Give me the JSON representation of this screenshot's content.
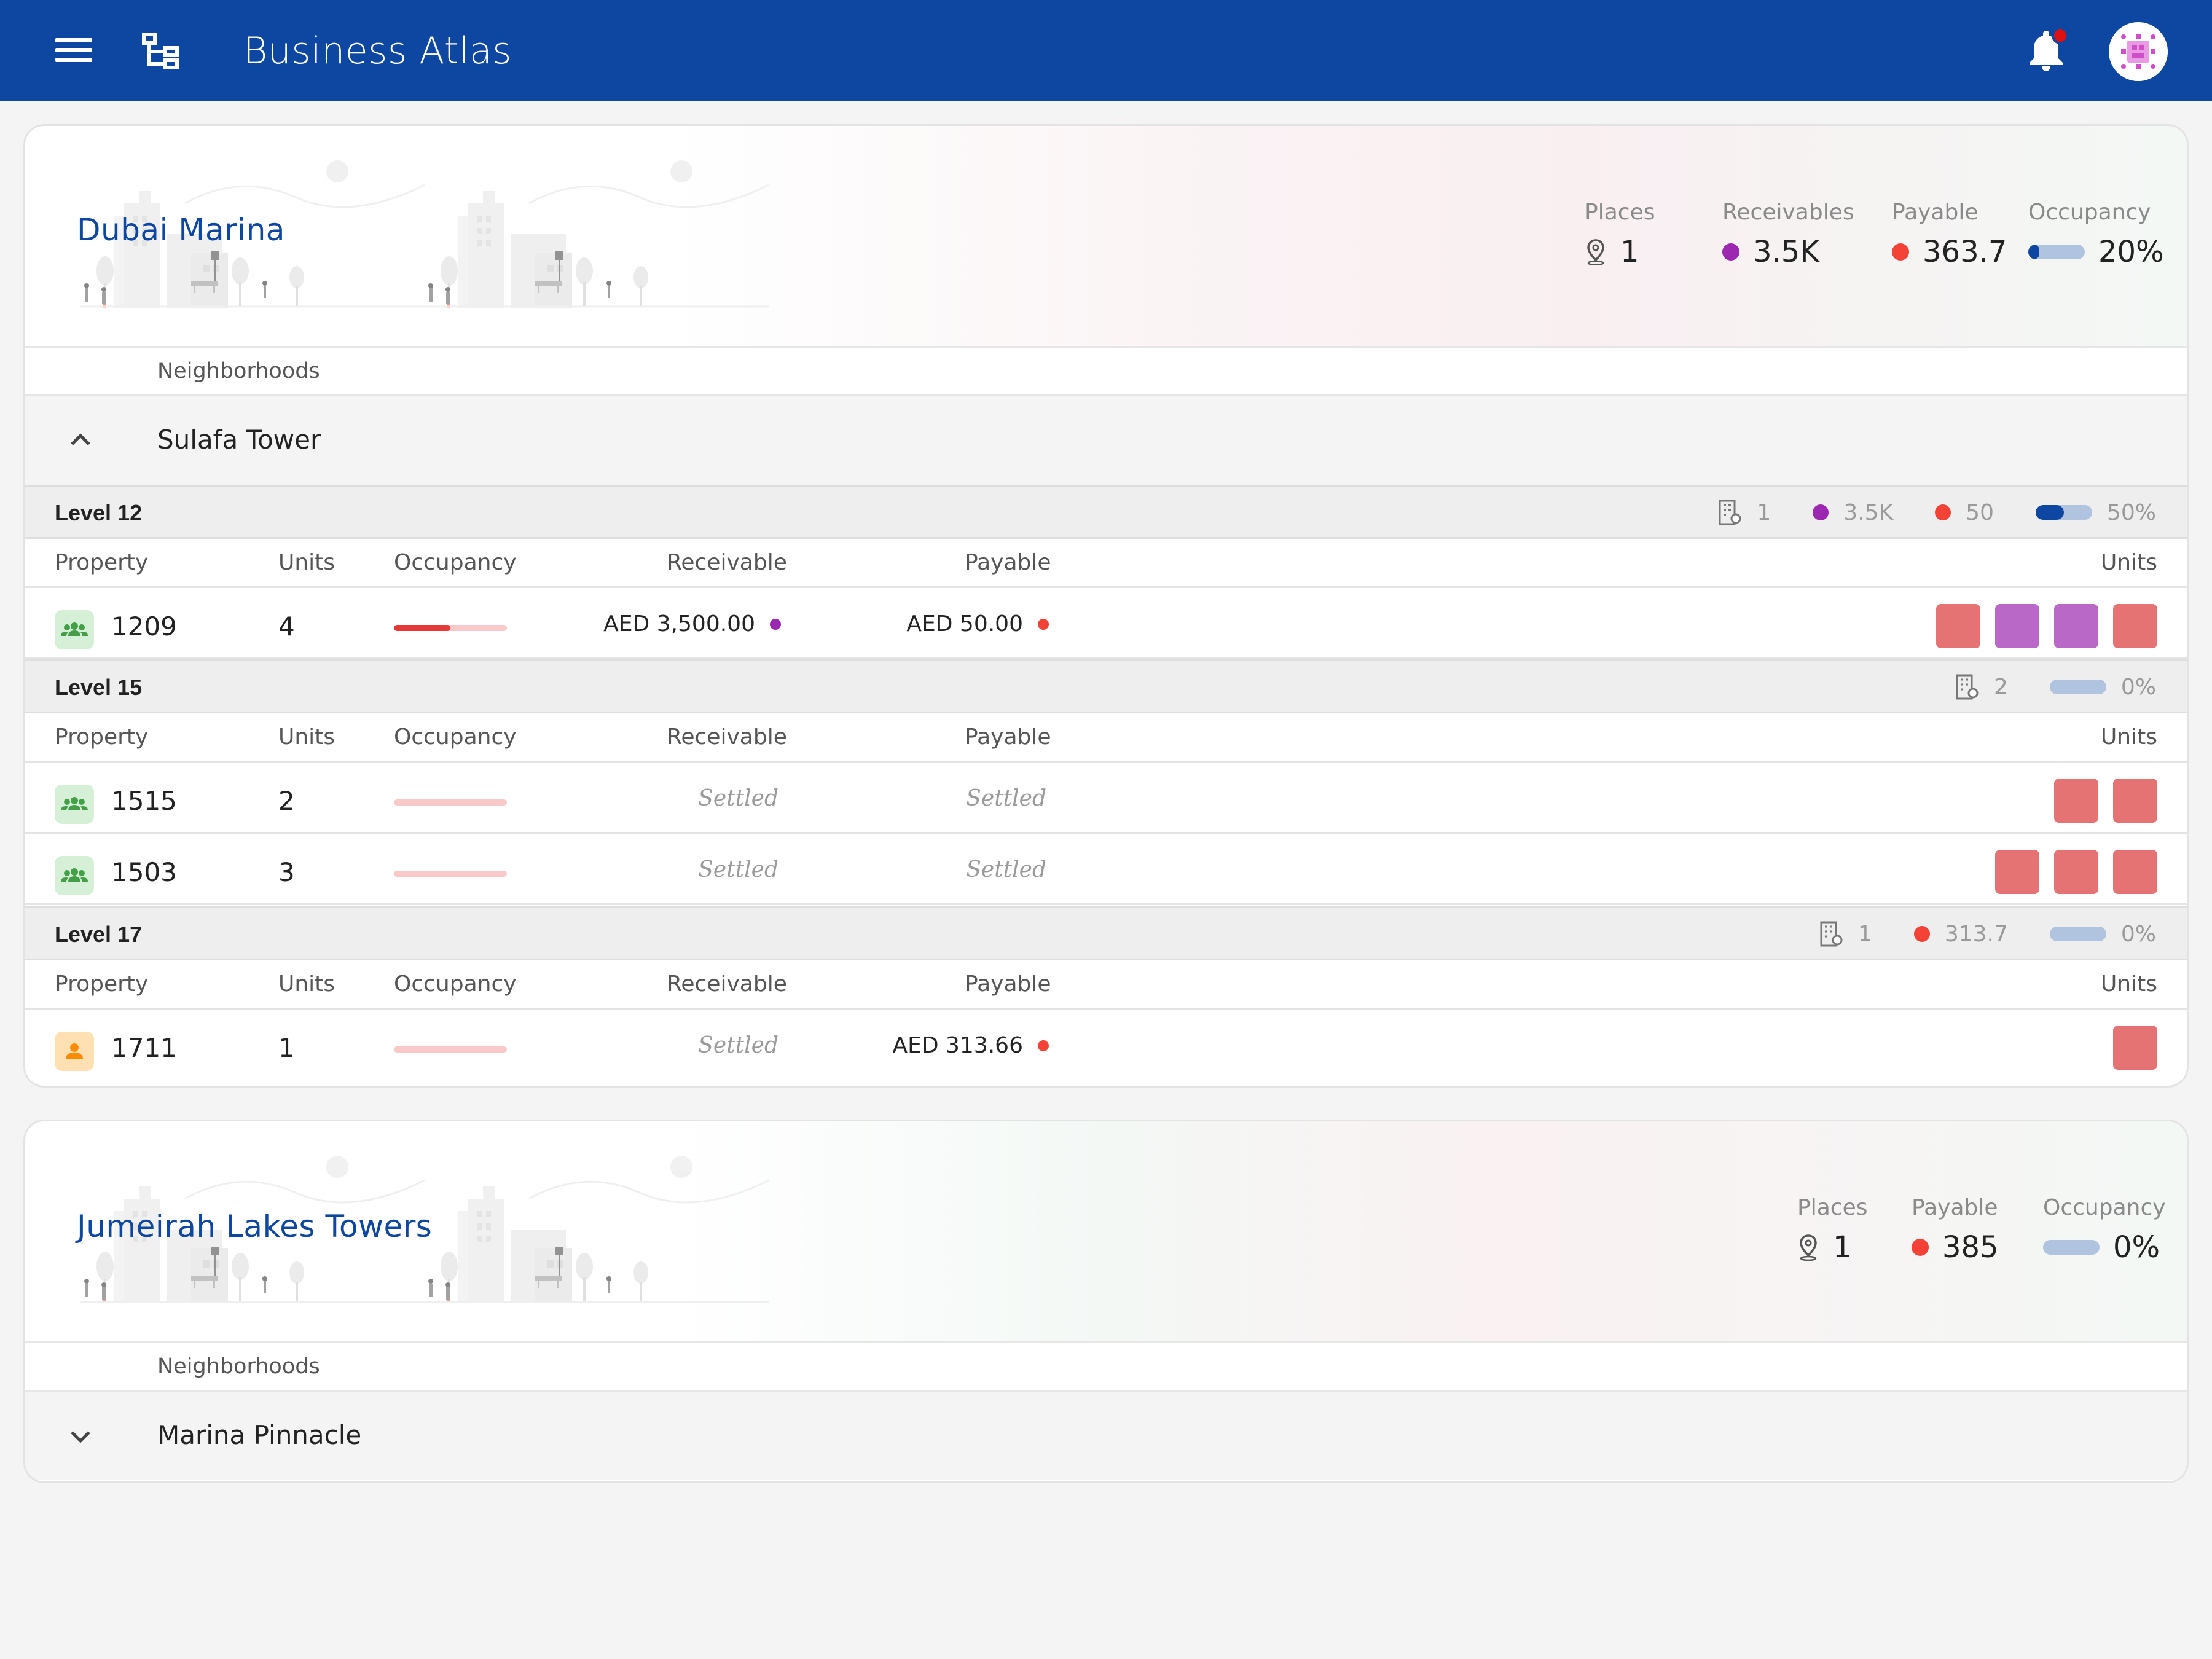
{
  "app": {
    "title": "Business Atlas"
  },
  "colors": {
    "primary": "#0e47a1",
    "receivable": "#9c27b0",
    "payable": "#f44336",
    "unit_vacant": "#e57373",
    "unit_occupied": "#ba68c8"
  },
  "icons": {
    "menu": "menu-icon",
    "tree": "tree-structure-icon",
    "bell": "bell-icon",
    "avatar": "avatar",
    "place": "location-pin-icon",
    "building": "building-icon",
    "chevron_up": "chevron-up-icon",
    "chevron_down": "chevron-down-icon",
    "group": "group-icon",
    "person": "person-icon"
  },
  "cards": [
    {
      "name": "Dubai Marina",
      "stats": {
        "places_label": "Places",
        "places": "1",
        "receivables_label": "Receivables",
        "receivables": "3.5K",
        "payable_label": "Payable",
        "payable": "363.7",
        "occupancy_label": "Occupancy",
        "occupancy": "20%",
        "occupancy_fraction": 0.2
      },
      "neighborhoods_label": "Neighborhoods",
      "neighborhood": {
        "name": "Sulafa Tower",
        "expanded": true,
        "columns": {
          "property": "Property",
          "units": "Units",
          "occupancy": "Occupancy",
          "receivable": "Receivable",
          "payable": "Payable",
          "units_right": "Units"
        },
        "levels": [
          {
            "name": "Level 12",
            "stats": {
              "buildings": "1",
              "receivable": "3.5K",
              "payable": "50",
              "occupancy": "50%",
              "occupancy_fraction": 0.5
            },
            "rows": [
              {
                "property": "1209",
                "type": "group",
                "units": "4",
                "occupancy_fraction": 0.5,
                "receivable": "AED 3,500.00",
                "payable": "AED 50.00",
                "unit_boxes": [
                  "vacant",
                  "occupied",
                  "occupied",
                  "vacant"
                ]
              }
            ]
          },
          {
            "name": "Level 15",
            "stats": {
              "buildings": "2",
              "occupancy": "0%",
              "occupancy_fraction": 0
            },
            "rows": [
              {
                "property": "1515",
                "type": "group",
                "units": "2",
                "occupancy_fraction": 0,
                "receivable": "Settled",
                "payable": "Settled",
                "unit_boxes": [
                  "vacant",
                  "vacant"
                ]
              },
              {
                "property": "1503",
                "type": "group",
                "units": "3",
                "occupancy_fraction": 0,
                "receivable": "Settled",
                "payable": "Settled",
                "unit_boxes": [
                  "vacant",
                  "vacant",
                  "vacant"
                ]
              }
            ]
          },
          {
            "name": "Level 17",
            "stats": {
              "buildings": "1",
              "payable": "313.7",
              "occupancy": "0%",
              "occupancy_fraction": 0
            },
            "rows": [
              {
                "property": "1711",
                "type": "person",
                "units": "1",
                "occupancy_fraction": 0,
                "receivable": "Settled",
                "payable": "AED 313.66",
                "unit_boxes": [
                  "vacant"
                ]
              }
            ]
          }
        ]
      }
    },
    {
      "name": "Jumeirah Lakes Towers",
      "stats": {
        "places_label": "Places",
        "places": "1",
        "payable_label": "Payable",
        "payable": "385",
        "occupancy_label": "Occupancy",
        "occupancy": "0%",
        "occupancy_fraction": 0
      },
      "neighborhoods_label": "Neighborhoods",
      "neighborhood": {
        "name": "Marina Pinnacle",
        "expanded": false
      }
    }
  ]
}
